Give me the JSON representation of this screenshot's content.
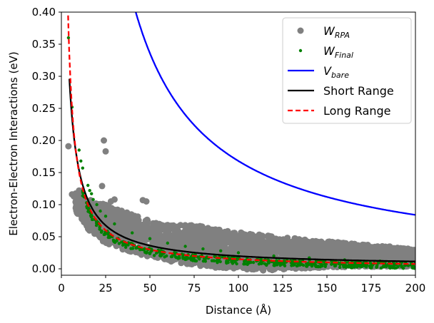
{
  "chart_data": {
    "type": "scatter",
    "xlabel": "Distance (Å)",
    "ylabel": "Electron-Electron Interactions (eV)",
    "xlim": [
      0,
      200
    ],
    "ylim": [
      -0.01,
      0.4
    ],
    "x_ticks": [
      "0",
      "25",
      "50",
      "75",
      "100",
      "125",
      "150",
      "175",
      "200"
    ],
    "y_ticks": [
      "0.00",
      "0.05",
      "0.10",
      "0.15",
      "0.20",
      "0.25",
      "0.30",
      "0.35",
      "0.40"
    ],
    "grid": false,
    "legend_position": "top-right",
    "series": [
      {
        "name": "W_RPA",
        "name_main": "W",
        "name_sub": "RPA",
        "kind": "scatter",
        "color": "#808080",
        "points": [
          [
            4,
            0.191
          ],
          [
            6,
            0.116
          ],
          [
            7,
            0.113
          ],
          [
            10,
            0.122
          ],
          [
            11,
            0.098
          ],
          [
            12,
            0.083
          ],
          [
            13,
            0.09
          ],
          [
            14,
            0.085
          ],
          [
            15,
            0.074
          ],
          [
            16,
            0.07
          ],
          [
            17,
            0.075
          ],
          [
            18,
            0.068
          ],
          [
            19,
            0.065
          ],
          [
            20,
            0.078
          ],
          [
            21,
            0.087
          ],
          [
            23,
            0.129
          ],
          [
            24,
            0.2
          ],
          [
            25,
            0.183
          ],
          [
            26,
            0.097
          ],
          [
            27,
            0.09
          ],
          [
            28,
            0.105
          ],
          [
            30,
            0.108
          ],
          [
            35,
            0.085
          ],
          [
            40,
            0.075
          ],
          [
            46,
            0.107
          ],
          [
            48,
            0.105
          ],
          [
            55,
            0.06
          ],
          [
            65,
            0.055
          ],
          [
            75,
            0.065
          ],
          [
            90,
            0.05
          ],
          [
            110,
            0.04
          ],
          [
            130,
            0.035
          ],
          [
            150,
            0.03
          ],
          [
            175,
            0.025
          ],
          [
            200,
            0.02
          ]
        ],
        "band": {
          "x": [
            8,
            15,
            25,
            35,
            45,
            55,
            65,
            75,
            85,
            100,
            115,
            130,
            150,
            170,
            185,
            200
          ],
          "upper": [
            0.12,
            0.11,
            0.1,
            0.09,
            0.08,
            0.07,
            0.068,
            0.07,
            0.062,
            0.058,
            0.052,
            0.048,
            0.043,
            0.038,
            0.035,
            0.03
          ],
          "lower": [
            0.09,
            0.06,
            0.04,
            0.03,
            0.022,
            0.015,
            0.01,
            0.006,
            0.002,
            0.0,
            -0.003,
            0.0,
            0.002,
            0.003,
            0.003,
            0.004
          ]
        }
      },
      {
        "name": "W_Final",
        "name_main": "W",
        "name_sub": "Final",
        "kind": "scatter",
        "color": "#008000",
        "points": [
          [
            4,
            0.36
          ],
          [
            6,
            0.252
          ],
          [
            10,
            0.185
          ],
          [
            11,
            0.168
          ],
          [
            12,
            0.157
          ],
          [
            15,
            0.13
          ],
          [
            16,
            0.122
          ],
          [
            17,
            0.117
          ],
          [
            18,
            0.108
          ],
          [
            20,
            0.1
          ],
          [
            22,
            0.09
          ],
          [
            25,
            0.082
          ],
          [
            30,
            0.07
          ],
          [
            40,
            0.056
          ],
          [
            50,
            0.047
          ],
          [
            60,
            0.04
          ],
          [
            70,
            0.035
          ],
          [
            80,
            0.031
          ],
          [
            90,
            0.028
          ],
          [
            100,
            0.025
          ],
          [
            120,
            0.02
          ],
          [
            140,
            0.017
          ],
          [
            160,
            0.014
          ],
          [
            180,
            0.012
          ],
          [
            200,
            0.01
          ]
        ]
      },
      {
        "name": "V_bare",
        "name_main": "V",
        "name_sub": "bare",
        "kind": "line",
        "color": "#0000ff",
        "dash": "solid",
        "formula": "16.8/x"
      },
      {
        "name": "Short Range",
        "kind": "line",
        "color": "#000000",
        "dash": "solid",
        "formula": "1.7/(x+1.3)+0.003",
        "x_start": 4.5
      },
      {
        "name": "Long Range",
        "kind": "line",
        "color": "#ff0000",
        "dash": "dashed",
        "formula": "1.5/x",
        "x_start": 3.8
      }
    ]
  }
}
